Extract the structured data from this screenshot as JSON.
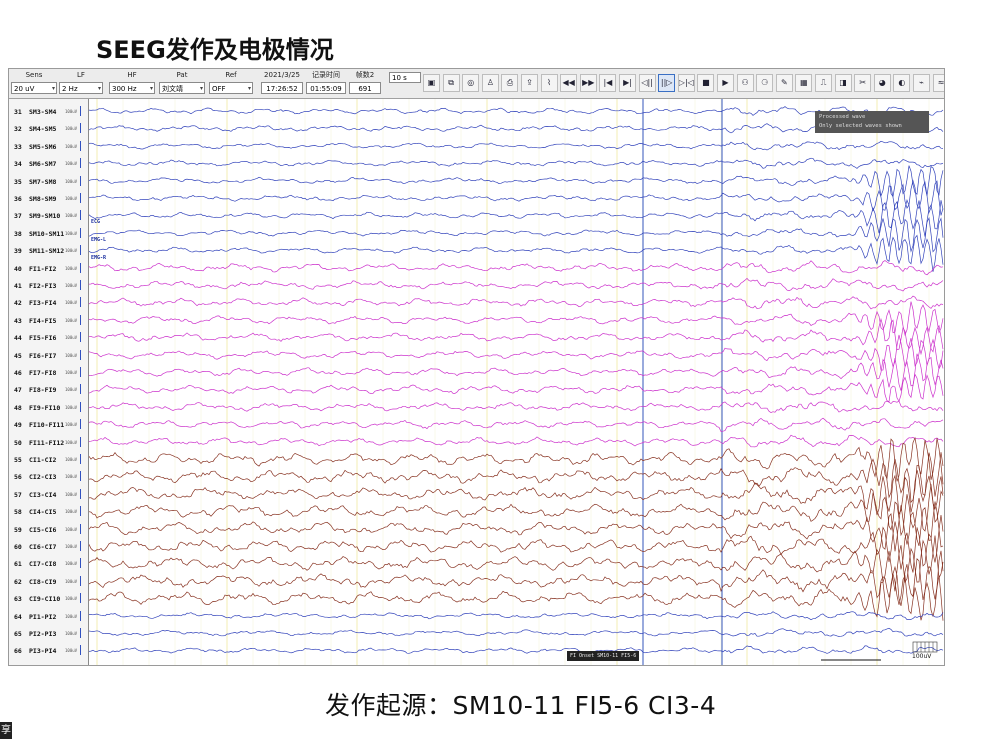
{
  "slide": {
    "title": "SEEG发作及电极情况",
    "caption": "发作起源：SM10-11 FI5-6 CI3-4",
    "corner_glyph": "享"
  },
  "toolbar": {
    "sens_label": "Sens",
    "sens_value": "20 uV",
    "lf_label": "LF",
    "lf_value": "2 Hz",
    "hf_label": "HF",
    "hf_value": "300 Hz",
    "pat_label": "Pat",
    "pat_value": "刘文靖",
    "ref_label": "Ref",
    "ref_value": "OFF",
    "date": "2021/3/25",
    "clock": "17:26:52",
    "record_time_label": "记录时间",
    "record_time": "01:55:09",
    "frame_label": "帧数2",
    "frame_value": "691",
    "window_value": "10 s",
    "buttons": [
      "save-icon",
      "montage-icon",
      "filter-icon",
      "person-icon",
      "print-icon",
      "export-icon",
      "chart-icon",
      "rewind-icon",
      "fast-forward-icon",
      "first-page-icon",
      "last-page-icon",
      "step-back-icon",
      "pause-step-icon",
      "jump-icon",
      "stop-icon",
      "play-icon",
      "analysis-icon",
      "report-icon",
      "note-icon",
      "spectrum-icon",
      "ruler-icon",
      "video-icon",
      "event-icon",
      "export2-icon",
      "color-icon",
      "palette-icon",
      "wave-icon"
    ],
    "button_glyphs": [
      "▣",
      "⧉",
      "◎",
      "♙",
      "⎙",
      "⇪",
      "⌇",
      "◀◀",
      "▶▶",
      "|◀",
      "▶|",
      "◁||",
      "||▷",
      "▷|◁",
      "■",
      "▶",
      "⚇",
      "⚆",
      "✎",
      "▦",
      "⎍",
      "◨",
      "✂",
      "◕",
      "◐",
      "⌁",
      "≈"
    ]
  },
  "channels": [
    {
      "n": "31",
      "name": "SM3-SM4",
      "scale": "100uV"
    },
    {
      "n": "32",
      "name": "SM4-SM5",
      "scale": "100uV"
    },
    {
      "n": "33",
      "name": "SM5-SM6",
      "scale": "100uV"
    },
    {
      "n": "34",
      "name": "SM6-SM7",
      "scale": "100uV"
    },
    {
      "n": "35",
      "name": "SM7-SM8",
      "scale": "100uV"
    },
    {
      "n": "36",
      "name": "SM8-SM9",
      "scale": "100uV"
    },
    {
      "n": "37",
      "name": "SM9-SM10",
      "scale": "100uV"
    },
    {
      "n": "38",
      "name": "SM10-SM11",
      "scale": "100uV"
    },
    {
      "n": "39",
      "name": "SM11-SM12",
      "scale": "100uV"
    },
    {
      "n": "40",
      "name": "FI1-FI2",
      "scale": "100uV"
    },
    {
      "n": "41",
      "name": "FI2-FI3",
      "scale": "100uV"
    },
    {
      "n": "42",
      "name": "FI3-FI4",
      "scale": "100uV"
    },
    {
      "n": "43",
      "name": "FI4-FI5",
      "scale": "100uV"
    },
    {
      "n": "44",
      "name": "FI5-FI6",
      "scale": "100uV"
    },
    {
      "n": "45",
      "name": "FI6-FI7",
      "scale": "100uV"
    },
    {
      "n": "46",
      "name": "FI7-FI8",
      "scale": "100uV"
    },
    {
      "n": "47",
      "name": "FI8-FI9",
      "scale": "100uV"
    },
    {
      "n": "48",
      "name": "FI9-FI10",
      "scale": "100uV"
    },
    {
      "n": "49",
      "name": "FI10-FI11",
      "scale": "100uV"
    },
    {
      "n": "50",
      "name": "FI11-FI12",
      "scale": "100uV"
    },
    {
      "n": "55",
      "name": "CI1-CI2",
      "scale": "100uV"
    },
    {
      "n": "56",
      "name": "CI2-CI3",
      "scale": "100uV"
    },
    {
      "n": "57",
      "name": "CI3-CI4",
      "scale": "100uV"
    },
    {
      "n": "58",
      "name": "CI4-CI5",
      "scale": "100uV"
    },
    {
      "n": "59",
      "name": "CI5-CI6",
      "scale": "100uV"
    },
    {
      "n": "60",
      "name": "CI6-CI7",
      "scale": "100uV"
    },
    {
      "n": "61",
      "name": "CI7-CI8",
      "scale": "100uV"
    },
    {
      "n": "62",
      "name": "CI8-CI9",
      "scale": "100uV"
    },
    {
      "n": "63",
      "name": "CI9-CI10",
      "scale": "100uV"
    },
    {
      "n": "64",
      "name": "PI1-PI2",
      "scale": "100uV"
    },
    {
      "n": "65",
      "name": "PI2-PI3",
      "scale": "100uV"
    },
    {
      "n": "66",
      "name": "PI3-PI4",
      "scale": "100uV"
    }
  ],
  "colors": {
    "sm": "#3344bb",
    "fi": "#cc33cc",
    "ci": "#883322",
    "pi": "#3344bb",
    "marker": "#3355bb"
  },
  "annotations": {
    "processed_line1": "Processed wave",
    "processed_line2": "Only selected waves shown",
    "ecg": "ECG",
    "emg_l": "EMG-L",
    "emg_r": "EMG-R",
    "onset_label": "FI Onset SM10-11 FI5-6",
    "time_scale": "1s",
    "amp_scale": "100uV",
    "scroll_marker": "■"
  }
}
